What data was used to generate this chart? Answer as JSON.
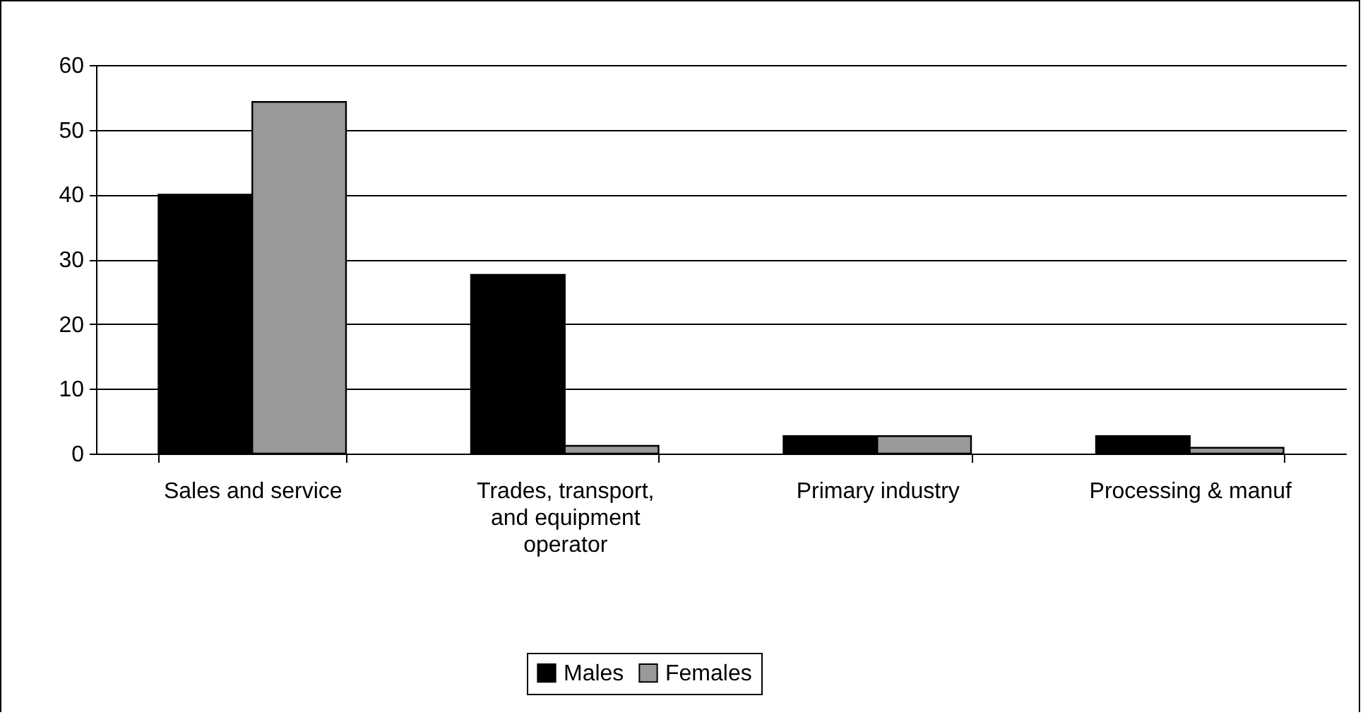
{
  "chart_data": {
    "type": "bar",
    "categories": [
      "Sales and service",
      "Trades, transport, and equipment operator",
      "Primary industry",
      "Processing & manuf"
    ],
    "series": [
      {
        "name": "Males",
        "color": "#000000",
        "values": [
          40,
          27.6,
          2.7,
          2.7
        ]
      },
      {
        "name": "Females",
        "color": "#999999",
        "values": [
          54.3,
          1.2,
          2.7,
          0.9
        ]
      }
    ],
    "ylim": [
      0,
      60
    ],
    "yticks": [
      0,
      10,
      20,
      30,
      40,
      50,
      60
    ],
    "grid": "y",
    "legend": "bottom"
  }
}
